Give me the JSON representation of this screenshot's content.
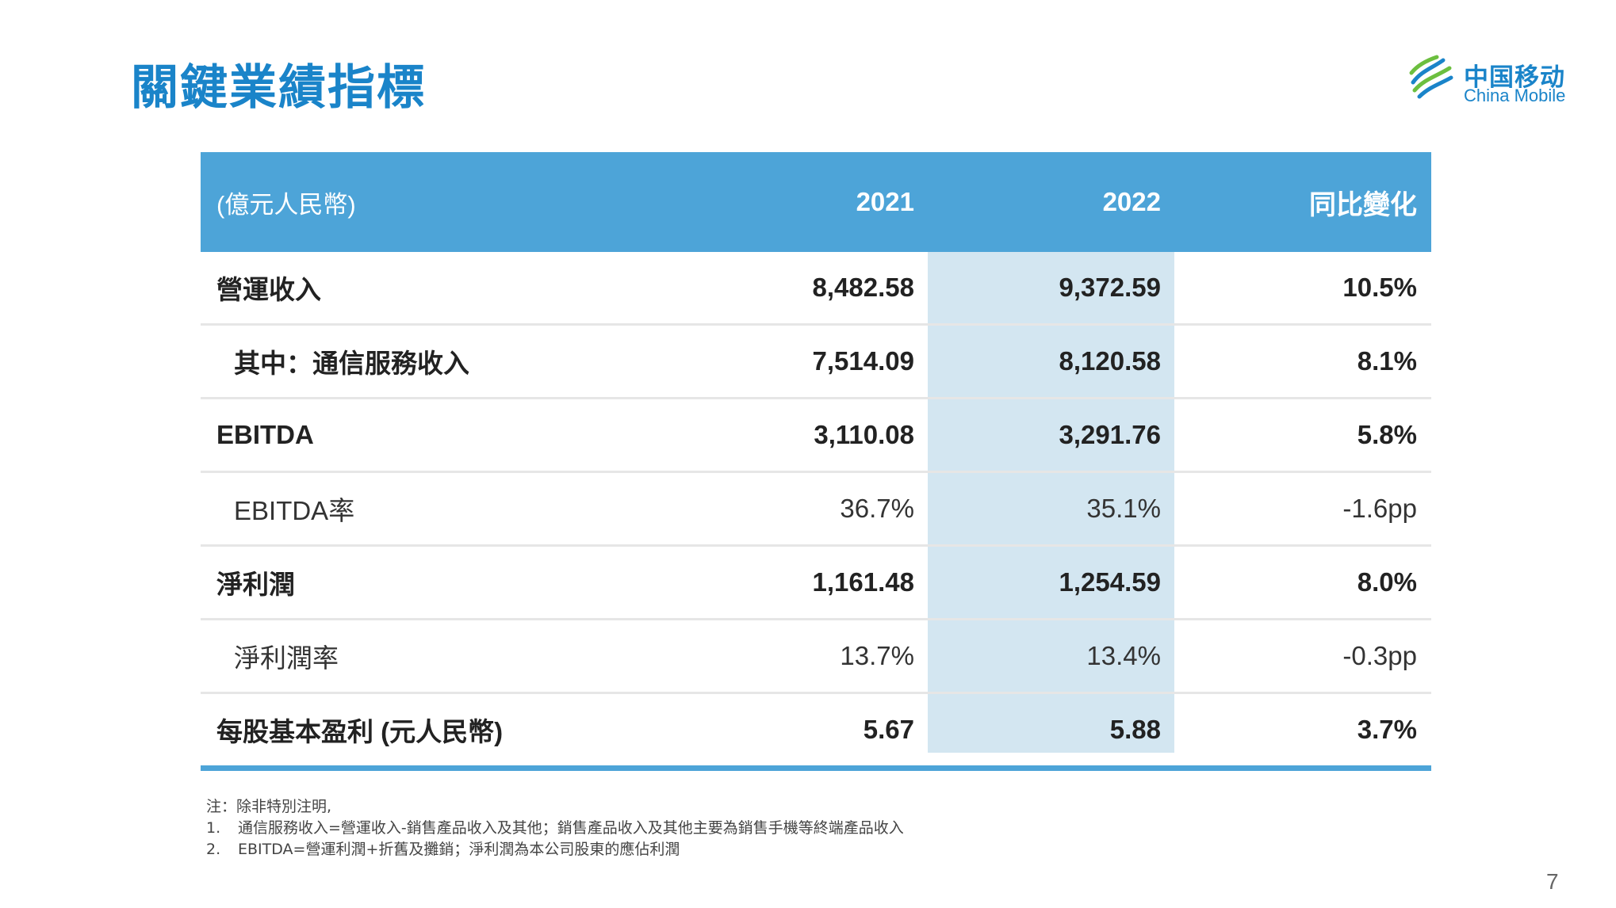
{
  "title": "關鍵業績指標",
  "logo": {
    "cn": "中国移动",
    "en": "China Mobile",
    "icon": "china-mobile-logo-icon"
  },
  "table": {
    "header": {
      "unit": "(億元人民幣)",
      "col_2021": "2021",
      "col_2022": "2022",
      "col_yoy": "同比變化"
    },
    "rows": [
      {
        "label": "營運收入",
        "v2021": "8,482.58",
        "v2022": "9,372.59",
        "yoy": "10.5%"
      },
      {
        "label": "其中：通信服務收入",
        "v2021": "7,514.09",
        "v2022": "8,120.58",
        "yoy": "8.1%"
      },
      {
        "label": "EBITDA",
        "v2021": "3,110.08",
        "v2022": "3,291.76",
        "yoy": "5.8%"
      },
      {
        "label": "EBITDA率",
        "v2021": "36.7%",
        "v2022": "35.1%",
        "yoy": "-1.6pp"
      },
      {
        "label": "淨利潤",
        "v2021": "1,161.48",
        "v2022": "1,254.59",
        "yoy": "8.0%"
      },
      {
        "label": "淨利潤率",
        "v2021": "13.7%",
        "v2022": "13.4%",
        "yoy": "-0.3pp"
      },
      {
        "label": "每股基本盈利 (元人民幣)",
        "v2021": "5.67",
        "v2022": "5.88",
        "yoy": "3.7%"
      }
    ]
  },
  "notes": {
    "intro": "注：除非特別注明,",
    "items": [
      {
        "num": "1.",
        "text": "通信服務收入=營運收入-銷售產品收入及其他；銷售產品收入及其他主要為銷售手機等終端產品收入"
      },
      {
        "num": "2.",
        "text": "EBITDA=營運利潤+折舊及攤銷；淨利潤為本公司股東的應佔利潤"
      }
    ]
  },
  "page_number": "7",
  "colors": {
    "title": "#1a84c9",
    "header_bg": "#4da4d8",
    "highlight_col": "#d3e6f1",
    "row_divider": "#e6e6e6"
  }
}
